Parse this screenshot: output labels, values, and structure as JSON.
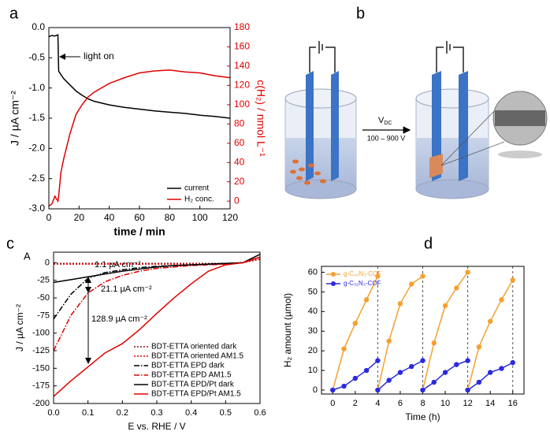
{
  "chart_data": [
    {
      "type": "line",
      "panel_label": "a",
      "xlabel": "time / min",
      "ylabel": "J / µA cm⁻²",
      "y2label": "c(H₂) / nmol L⁻¹",
      "annotations": [
        "light on"
      ],
      "x": [
        0,
        2,
        4,
        6,
        6.5,
        8,
        10,
        14,
        18,
        22,
        26,
        30,
        40,
        50,
        60,
        70,
        80,
        90,
        100,
        110,
        120
      ],
      "xlim": [
        0,
        120
      ],
      "xticks": [
        0,
        20,
        40,
        60,
        80,
        100,
        120
      ],
      "ylim": [
        -3,
        0
      ],
      "yticks": [
        {
          "value": -3,
          "label": "-3.0"
        },
        -2.5,
        {
          "value": -2,
          "label": "-2.0"
        },
        -1.5,
        {
          "value": -1,
          "label": "-1.0"
        },
        -0.5,
        {
          "value": 0,
          "label": "0.0"
        }
      ],
      "y2lim": [
        -8,
        180
      ],
      "y2ticks": [
        0,
        20,
        40,
        60,
        80,
        100,
        120,
        140,
        160,
        180
      ],
      "y2color": "#e00000",
      "legend": "lower right",
      "series": [
        {
          "name": "current",
          "color": "#000000",
          "dash": "solid",
          "values": [
            -0.15,
            -0.13,
            -0.14,
            -0.12,
            -0.72,
            -0.78,
            -0.85,
            -0.95,
            -1.05,
            -1.12,
            -1.18,
            -1.22,
            -1.28,
            -1.32,
            -1.35,
            -1.38,
            -1.4,
            -1.42,
            -1.45,
            -1.47,
            -1.5
          ]
        },
        {
          "name": "H₂ conc.",
          "color": "#e00000",
          "dash": "solid",
          "axis": "y2",
          "values": [
            -5,
            -3,
            5,
            0,
            5,
            30,
            45,
            70,
            90,
            100,
            108,
            113,
            122,
            128,
            133,
            135,
            136,
            134,
            133,
            130,
            128
          ]
        }
      ]
    },
    {
      "type": "line",
      "panel_label": "c",
      "inset_label": "A",
      "xlabel": "E vs. RHE / V",
      "ylabel": "J / µA cm⁻²",
      "annotations": [
        "1.1 µA cm⁻²",
        "21.1 µA cm⁻²",
        "128.9 µA cm⁻²"
      ],
      "x": [
        0,
        0.05,
        0.1,
        0.15,
        0.2,
        0.25,
        0.3,
        0.35,
        0.4,
        0.45,
        0.5,
        0.55,
        0.6
      ],
      "xlim": [
        0,
        0.6
      ],
      "xticks": [
        {
          "value": 0,
          "label": "0.0"
        },
        0.1,
        0.2,
        0.3,
        0.4,
        0.5,
        0.6
      ],
      "ylim": [
        -200,
        15
      ],
      "yticks": [
        -200,
        -175,
        -150,
        -125,
        -100,
        -75,
        -50,
        -25,
        0
      ],
      "legend": "lower right",
      "series": [
        {
          "name": "BDT-ETTA oriented dark",
          "color": "#8b1a1a",
          "dash": "dotted",
          "values": [
            -1,
            -1,
            -1,
            -1,
            -1,
            -1,
            -1,
            -1,
            -1,
            -1,
            -1,
            0,
            5
          ]
        },
        {
          "name": "BDT-ETTA oriented AM1.5",
          "color": "#e00000",
          "dash": "dotted",
          "values": [
            -2,
            -2,
            -2,
            -2,
            -2,
            -2,
            -2,
            -2,
            -2,
            -2,
            -2,
            0,
            5
          ]
        },
        {
          "name": "BDT-ETTA EPD dark",
          "color": "#000000",
          "dash": "dashdot",
          "values": [
            -80,
            -45,
            -22,
            -14,
            -10,
            -7,
            -5,
            -4,
            -3,
            -2,
            -1,
            0,
            8
          ]
        },
        {
          "name": "BDT-ETTA EPD AM1.5",
          "color": "#e00000",
          "dash": "dashdot",
          "values": [
            -125,
            -75,
            -43,
            -27,
            -18,
            -12,
            -8,
            -6,
            -4,
            -3,
            -2,
            0,
            8
          ]
        },
        {
          "name": "BDT-ETTA EPD/Pt dark",
          "color": "#000000",
          "dash": "solid",
          "values": [
            -28,
            -24,
            -20,
            -16,
            -12,
            -9,
            -6,
            -4,
            -3,
            -2,
            -1,
            0,
            12
          ]
        },
        {
          "name": "BDT-ETTA EPD/Pt AM1.5",
          "color": "#e00000",
          "dash": "solid",
          "values": [
            -190,
            -168,
            -148,
            -128,
            -115,
            -95,
            -72,
            -50,
            -30,
            -12,
            -3,
            0,
            8
          ]
        }
      ]
    },
    {
      "type": "line",
      "panel_label": "d",
      "xlabel": "Time (h)",
      "ylabel": "H₂ amount (µmol)",
      "markers": true,
      "x": [
        0,
        1,
        2,
        3,
        4,
        null,
        4,
        5,
        6,
        7,
        8,
        null,
        8,
        9,
        10,
        11,
        12,
        null,
        12,
        13,
        14,
        15,
        16
      ],
      "xlim": [
        -1,
        17
      ],
      "xticks": [
        0,
        2,
        4,
        6,
        8,
        10,
        12,
        14,
        16
      ],
      "ylim": [
        -2,
        63
      ],
      "yticks": [
        0,
        10,
        20,
        30,
        40,
        50,
        60
      ],
      "vlines": [
        4,
        8,
        12,
        16
      ],
      "legend": "upper left",
      "series": [
        {
          "name": "g-C₄₀N₃-COF",
          "color": "#f5a030",
          "dash": "solid",
          "values": [
            0,
            21,
            34,
            46,
            58,
            null,
            0,
            25,
            44,
            54,
            58,
            null,
            0,
            24,
            43,
            52,
            60,
            null,
            0,
            22,
            35,
            46,
            56
          ]
        },
        {
          "name": "g-C₃₁N₃-COF",
          "color": "#2a2ae0",
          "dash": "solid",
          "values": [
            0,
            2,
            6,
            10,
            15,
            null,
            0,
            5,
            9,
            12,
            15,
            null,
            0,
            4,
            9,
            13,
            15,
            null,
            0,
            4,
            9,
            11,
            14
          ]
        }
      ]
    }
  ],
  "diagram": {
    "panel_label": "b",
    "arrow_label": "V",
    "arrow_label_sub": "DC",
    "arrow_sublabel": "100 – 900 V"
  }
}
